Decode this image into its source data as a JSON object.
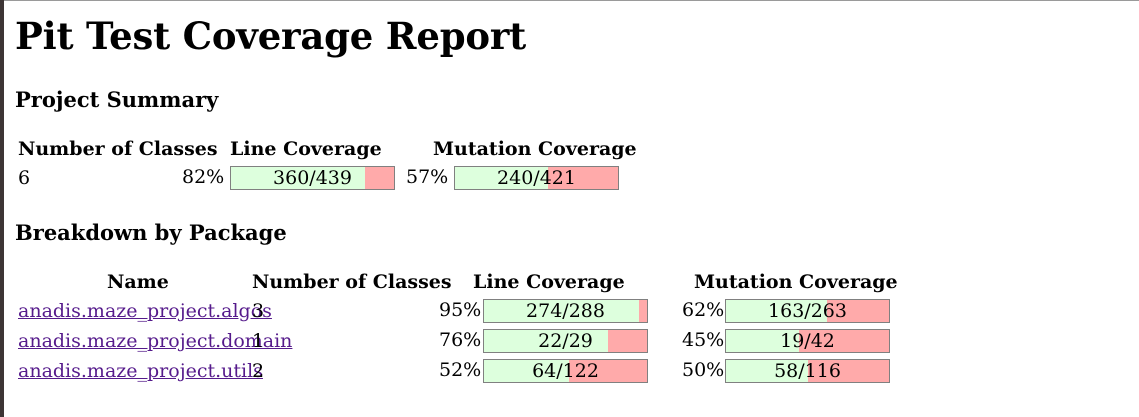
{
  "title": "Pit Test Coverage Report",
  "project_summary": {
    "heading": "Project Summary",
    "headers": {
      "classes": "Number of Classes",
      "line": "Line Coverage",
      "mutation": "Mutation Coverage"
    },
    "classes": "6",
    "line": {
      "percent": "82%",
      "label": "360/439",
      "fraction": 0.82
    },
    "mutation": {
      "percent": "57%",
      "label": "240/421",
      "fraction": 0.57
    }
  },
  "breakdown": {
    "heading": "Breakdown by Package",
    "headers": {
      "name": "Name",
      "classes": "Number of Classes",
      "line": "Line Coverage",
      "mutation": "Mutation Coverage"
    },
    "rows": [
      {
        "name": "anadis.maze_project.algos",
        "classes": "3",
        "line": {
          "percent": "95%",
          "label": "274/288",
          "fraction": 0.95
        },
        "mutation": {
          "percent": "62%",
          "label": "163/263",
          "fraction": 0.62
        }
      },
      {
        "name": "anadis.maze_project.domain",
        "classes": "1",
        "line": {
          "percent": "76%",
          "label": "22/29",
          "fraction": 0.76
        },
        "mutation": {
          "percent": "45%",
          "label": "19/42",
          "fraction": 0.45
        }
      },
      {
        "name": "anadis.maze_project.utils",
        "classes": "2",
        "line": {
          "percent": "52%",
          "label": "64/122",
          "fraction": 0.52
        },
        "mutation": {
          "percent": "50%",
          "label": "58/116",
          "fraction": 0.5
        }
      }
    ]
  },
  "colors": {
    "covered": "#ddffdd",
    "uncovered": "#ffaaaa",
    "link": "#551a8b"
  }
}
